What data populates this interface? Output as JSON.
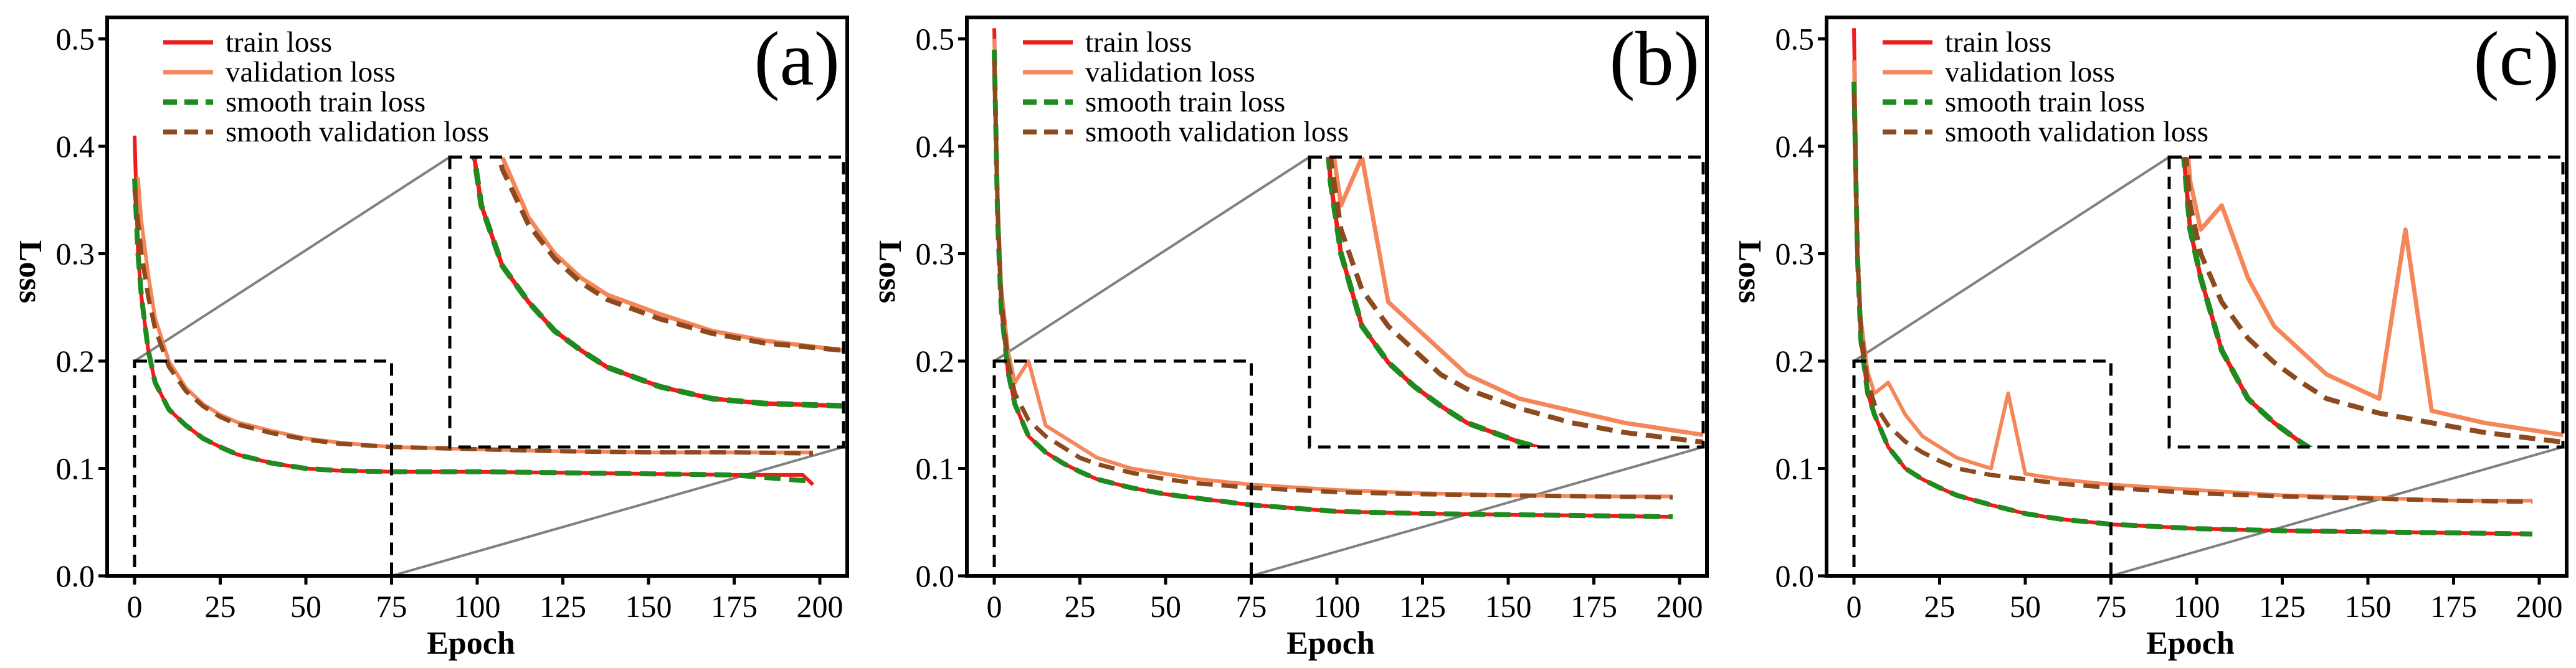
{
  "figure": {
    "colors": {
      "train": "#ee1c1c",
      "validation": "#f4865a",
      "smooth_train": "#1f8a1f",
      "smooth_validation": "#8c4a1e",
      "frame": "#000000",
      "connector": "#808080"
    }
  },
  "chart_data": [
    {
      "type": "line",
      "panel": "(a)",
      "xlabel": "Epoch",
      "ylabel": "Loss",
      "xlim": [
        -8,
        208
      ],
      "ylim": [
        0.0,
        0.52
      ],
      "xticks": [
        "0",
        "25",
        "50",
        "75",
        "100",
        "125",
        "150",
        "175",
        "200"
      ],
      "yticks": [
        "0.0",
        "0.1",
        "0.2",
        "0.3",
        "0.4",
        "0.5"
      ],
      "legend": [
        "train loss",
        "validation loss",
        "smooth train loss",
        "smooth validation loss"
      ],
      "legend_position": "top-left",
      "inset": {
        "zoom_region": {
          "x": [
            0,
            75
          ],
          "y": [
            0.0,
            0.2
          ]
        },
        "position": "top-right"
      },
      "series": [
        {
          "name": "train loss",
          "x": [
            0,
            1,
            2,
            4,
            6,
            10,
            15,
            20,
            25,
            30,
            40,
            50,
            60,
            75,
            100,
            125,
            150,
            175,
            195,
            198
          ],
          "y": [
            0.41,
            0.3,
            0.26,
            0.21,
            0.18,
            0.155,
            0.14,
            0.128,
            0.12,
            0.113,
            0.105,
            0.1,
            0.098,
            0.097,
            0.097,
            0.096,
            0.095,
            0.094,
            0.094,
            0.085
          ]
        },
        {
          "name": "validation loss",
          "x": [
            0,
            1,
            2,
            4,
            6,
            10,
            15,
            20,
            25,
            30,
            40,
            50,
            60,
            75,
            100,
            125,
            150,
            175,
            198
          ],
          "y": [
            0.36,
            0.37,
            0.33,
            0.28,
            0.24,
            0.2,
            0.175,
            0.16,
            0.15,
            0.143,
            0.135,
            0.128,
            0.124,
            0.12,
            0.118,
            0.116,
            0.115,
            0.115,
            0.115
          ]
        },
        {
          "name": "smooth train loss",
          "x": [
            0,
            1,
            2,
            4,
            6,
            10,
            15,
            20,
            25,
            30,
            40,
            50,
            60,
            75,
            100,
            125,
            150,
            175,
            198
          ],
          "y": [
            0.37,
            0.3,
            0.26,
            0.21,
            0.18,
            0.155,
            0.14,
            0.128,
            0.12,
            0.113,
            0.105,
            0.1,
            0.098,
            0.097,
            0.097,
            0.096,
            0.095,
            0.094,
            0.088
          ]
        },
        {
          "name": "smooth validation loss",
          "x": [
            0,
            1,
            2,
            4,
            6,
            10,
            15,
            20,
            25,
            30,
            40,
            50,
            60,
            75,
            100,
            125,
            150,
            175,
            198
          ],
          "y": [
            0.36,
            0.33,
            0.3,
            0.26,
            0.23,
            0.195,
            0.172,
            0.158,
            0.148,
            0.141,
            0.133,
            0.127,
            0.123,
            0.12,
            0.118,
            0.116,
            0.115,
            0.115,
            0.114
          ]
        }
      ]
    },
    {
      "type": "line",
      "panel": "(b)",
      "xlabel": "Epoch",
      "ylabel": "Loss",
      "xlim": [
        -8,
        208
      ],
      "ylim": [
        0.0,
        0.52
      ],
      "xticks": [
        "0",
        "25",
        "50",
        "75",
        "100",
        "125",
        "150",
        "175",
        "200"
      ],
      "yticks": [
        "0.0",
        "0.1",
        "0.2",
        "0.3",
        "0.4",
        "0.5"
      ],
      "legend": [
        "train loss",
        "validation loss",
        "smooth train loss",
        "smooth validation loss"
      ],
      "legend_position": "top-left",
      "inset": {
        "zoom_region": {
          "x": [
            0,
            75
          ],
          "y": [
            0.0,
            0.2
          ]
        },
        "position": "top-right"
      },
      "series": [
        {
          "name": "train loss",
          "x": [
            0,
            1,
            2,
            4,
            6,
            10,
            15,
            20,
            25,
            30,
            40,
            50,
            60,
            75,
            100,
            125,
            150,
            175,
            198
          ],
          "y": [
            0.51,
            0.33,
            0.25,
            0.19,
            0.16,
            0.13,
            0.115,
            0.105,
            0.097,
            0.09,
            0.082,
            0.076,
            0.072,
            0.066,
            0.06,
            0.058,
            0.057,
            0.056,
            0.055
          ]
        },
        {
          "name": "validation loss",
          "x": [
            0,
            1,
            2,
            4,
            6,
            10,
            15,
            20,
            25,
            30,
            40,
            50,
            60,
            75,
            100,
            125,
            150,
            175,
            198
          ],
          "y": [
            0.5,
            0.35,
            0.27,
            0.21,
            0.18,
            0.2,
            0.14,
            0.13,
            0.12,
            0.11,
            0.1,
            0.095,
            0.09,
            0.085,
            0.08,
            0.077,
            0.075,
            0.074,
            0.074
          ]
        },
        {
          "name": "smooth train loss",
          "x": [
            0,
            1,
            2,
            4,
            6,
            10,
            15,
            20,
            25,
            30,
            40,
            50,
            60,
            75,
            100,
            125,
            150,
            175,
            198
          ],
          "y": [
            0.49,
            0.33,
            0.25,
            0.19,
            0.16,
            0.13,
            0.115,
            0.105,
            0.097,
            0.09,
            0.082,
            0.076,
            0.072,
            0.066,
            0.06,
            0.058,
            0.057,
            0.056,
            0.055
          ]
        },
        {
          "name": "smooth validation loss",
          "x": [
            0,
            1,
            2,
            4,
            6,
            10,
            15,
            20,
            25,
            30,
            40,
            50,
            60,
            75,
            100,
            125,
            150,
            175,
            198
          ],
          "y": [
            0.48,
            0.34,
            0.26,
            0.2,
            0.17,
            0.145,
            0.13,
            0.12,
            0.11,
            0.104,
            0.096,
            0.09,
            0.086,
            0.082,
            0.078,
            0.076,
            0.075,
            0.074,
            0.073
          ]
        }
      ]
    },
    {
      "type": "line",
      "panel": "(c)",
      "xlabel": "Epoch",
      "ylabel": "Loss",
      "xlim": [
        -8,
        208
      ],
      "ylim": [
        0.0,
        0.52
      ],
      "xticks": [
        "0",
        "25",
        "50",
        "75",
        "100",
        "125",
        "150",
        "175",
        "200"
      ],
      "yticks": [
        "0.0",
        "0.1",
        "0.2",
        "0.3",
        "0.4",
        "0.5"
      ],
      "legend": [
        "train loss",
        "validation loss",
        "smooth train loss",
        "smooth validation loss"
      ],
      "legend_position": "top-left",
      "inset": {
        "zoom_region": {
          "x": [
            0,
            75
          ],
          "y": [
            0.0,
            0.2
          ]
        },
        "position": "top-right"
      },
      "series": [
        {
          "name": "train loss",
          "x": [
            0,
            1,
            2,
            4,
            6,
            10,
            15,
            20,
            25,
            30,
            40,
            50,
            60,
            75,
            100,
            125,
            150,
            175,
            198
          ],
          "y": [
            0.51,
            0.3,
            0.22,
            0.17,
            0.15,
            0.12,
            0.1,
            0.09,
            0.082,
            0.075,
            0.066,
            0.058,
            0.053,
            0.048,
            0.044,
            0.042,
            0.041,
            0.04,
            0.039
          ]
        },
        {
          "name": "validation loss",
          "x": [
            0,
            1,
            2,
            4,
            6,
            10,
            15,
            20,
            25,
            30,
            40,
            45,
            50,
            60,
            75,
            100,
            125,
            150,
            175,
            198
          ],
          "y": [
            0.48,
            0.3,
            0.24,
            0.19,
            0.17,
            0.18,
            0.15,
            0.13,
            0.12,
            0.11,
            0.1,
            0.17,
            0.095,
            0.09,
            0.085,
            0.08,
            0.075,
            0.073,
            0.07,
            0.07
          ]
        },
        {
          "name": "smooth train loss",
          "x": [
            0,
            1,
            2,
            4,
            6,
            10,
            15,
            20,
            25,
            30,
            40,
            50,
            60,
            75,
            100,
            125,
            150,
            175,
            198
          ],
          "y": [
            0.46,
            0.3,
            0.22,
            0.17,
            0.15,
            0.12,
            0.1,
            0.09,
            0.082,
            0.075,
            0.066,
            0.058,
            0.053,
            0.048,
            0.044,
            0.042,
            0.041,
            0.04,
            0.039
          ]
        },
        {
          "name": "smooth validation loss",
          "x": [
            0,
            1,
            2,
            4,
            6,
            10,
            15,
            20,
            25,
            30,
            40,
            50,
            60,
            75,
            100,
            125,
            150,
            175,
            198
          ],
          "y": [
            0.45,
            0.3,
            0.23,
            0.18,
            0.16,
            0.14,
            0.125,
            0.115,
            0.107,
            0.1,
            0.094,
            0.09,
            0.086,
            0.082,
            0.077,
            0.074,
            0.072,
            0.07,
            0.069
          ]
        }
      ]
    }
  ]
}
